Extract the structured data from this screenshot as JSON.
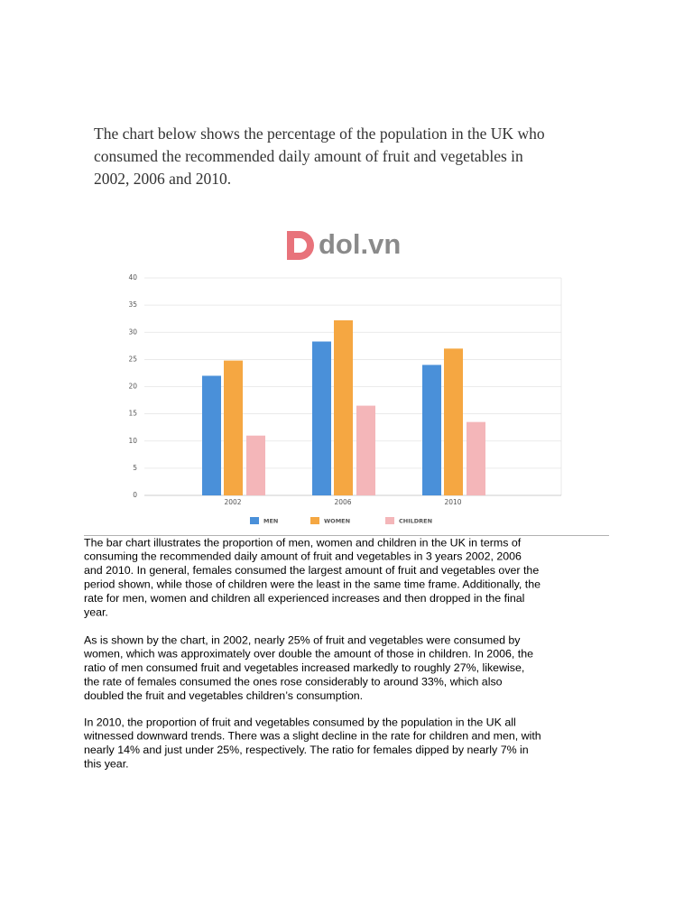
{
  "heading": [
    "The chart below shows the percentage of the population in the UK who",
    "consumed the recommended daily amount of fruit and vegetables in",
    "2002, 2006 and 2010."
  ],
  "logo": "dol.vn",
  "chart_data": {
    "type": "bar",
    "categories": [
      "2002",
      "2006",
      "2010"
    ],
    "series": [
      {
        "name": "MEN",
        "color": "#4a90d9",
        "values": [
          22,
          28.3,
          24
        ]
      },
      {
        "name": "WOMEN",
        "color": "#f5a742",
        "values": [
          24.8,
          32.2,
          27
        ]
      },
      {
        "name": "CHILDREN",
        "color": "#f4b6b9",
        "values": [
          11,
          16.5,
          13.5
        ]
      }
    ],
    "ylim": [
      0,
      40
    ],
    "yticks": [
      0,
      5,
      10,
      15,
      20,
      25,
      30,
      35,
      40
    ],
    "grid": true
  },
  "paragraphs": [
    [
      "The bar chart illustrates the proportion of men, women and children in the UK in terms of",
      "consuming the recommended daily amount of fruit and vegetables in 3 years 2002, 2006",
      "and 2010. In general, females consumed the largest amount of fruit and vegetables over the",
      "period shown, while those of children were the least in the same time frame. Additionally, the",
      "rate for men, women and children all experienced increases and then dropped in the final",
      "year."
    ],
    [
      "As is shown by the chart, in 2002, nearly 25% of fruit and vegetables were consumed by",
      "women, which was approximately over double the amount of those in children. In 2006, the",
      "ratio of men consumed fruit and vegetables increased markedly to roughly 27%, likewise,",
      "the rate of females consumed the ones rose considerably to around 33%, which also",
      "doubled the fruit and vegetables children’s consumption."
    ],
    [
      "In 2010, the proportion of fruit and vegetables consumed by the population in the UK all",
      "witnessed downward trends. There was a slight decline in the rate for children and men, with",
      "nearly 14% and just under 25%, respectively. The ratio for females dipped by nearly 7% in",
      "this year."
    ]
  ]
}
